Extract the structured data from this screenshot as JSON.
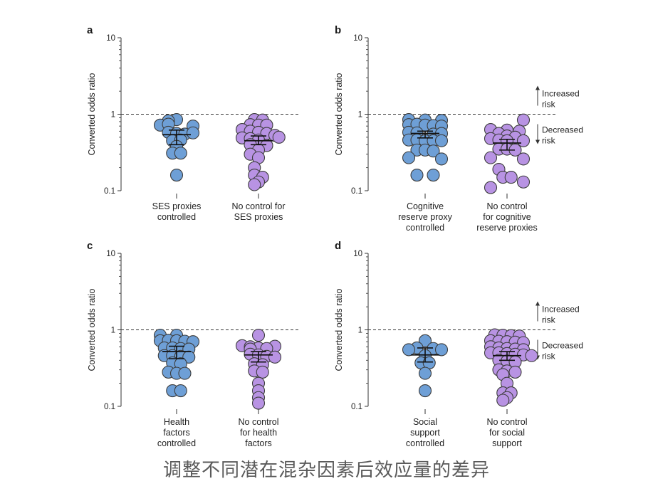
{
  "caption": "调整不同潜在混杂因素后效应量的差异",
  "colors": {
    "controlled": "#6e9fd6",
    "uncontrolled": "#b893e3",
    "stroke": "#3d3d3d"
  },
  "annotations": {
    "increased": [
      "Increased",
      "risk"
    ],
    "decreased": [
      "Decreased",
      "risk"
    ]
  },
  "chart_data": [
    {
      "panel": "a",
      "type": "scatter",
      "scale": "log",
      "ylabel": "Converted odds ratio",
      "ylim": [
        0.1,
        10
      ],
      "yticks": [
        "10",
        "1",
        "0.1"
      ],
      "reference_line": 1,
      "show_risk_labels": false,
      "groups": [
        {
          "label": [
            "SES proxies",
            "controlled"
          ],
          "kind": "controlled",
          "mean": 0.54,
          "ci": [
            0.4,
            0.62
          ],
          "values": [
            0.85,
            0.82,
            0.72,
            0.74,
            0.7,
            0.58,
            0.56,
            0.55,
            0.57,
            0.45,
            0.46,
            0.38,
            0.31,
            0.31,
            0.16
          ],
          "jitter": [
            0,
            -1,
            -2,
            -1,
            2,
            -1,
            0,
            1,
            2,
            -0.5,
            0.5,
            0,
            -0.5,
            0.5,
            0
          ]
        },
        {
          "label": [
            "No control for",
            "SES proxies"
          ],
          "kind": "uncontrolled",
          "mean": 0.45,
          "ci": [
            0.4,
            0.52
          ],
          "values": [
            0.85,
            0.84,
            0.73,
            0.72,
            0.72,
            0.63,
            0.6,
            0.58,
            0.56,
            0.53,
            0.5,
            0.49,
            0.48,
            0.46,
            0.4,
            0.39,
            0.34,
            0.3,
            0.27,
            0.2,
            0.16,
            0.15,
            0.13,
            0.12
          ],
          "jitter": [
            -0.5,
            0.5,
            -1,
            0,
            1,
            -2,
            -1,
            0,
            1,
            2,
            2.5,
            -2,
            -1,
            0,
            -1,
            1,
            0,
            -1,
            0,
            -0.5,
            -0.5,
            0.5,
            0,
            -0.5
          ]
        }
      ]
    },
    {
      "panel": "b",
      "type": "scatter",
      "scale": "log",
      "ylabel": "Converted odds ratio",
      "ylim": [
        0.1,
        10
      ],
      "yticks": [
        "10",
        "1",
        "0.1"
      ],
      "reference_line": 1,
      "show_risk_labels": true,
      "groups": [
        {
          "label": [
            "Cognitive",
            "reserve proxy",
            "controlled"
          ],
          "kind": "controlled",
          "mean": 0.56,
          "ci": [
            0.49,
            0.6
          ],
          "values": [
            0.85,
            0.84,
            0.83,
            0.73,
            0.74,
            0.72,
            0.71,
            0.7,
            0.58,
            0.57,
            0.55,
            0.56,
            0.46,
            0.46,
            0.45,
            0.45,
            0.45,
            0.34,
            0.34,
            0.33,
            0.27,
            0.26,
            0.16,
            0.16
          ],
          "jitter": [
            -2,
            0,
            2,
            -2,
            -1,
            0,
            1,
            2,
            -2,
            -1,
            1,
            2,
            -2,
            -1,
            0,
            1,
            2,
            -1,
            0,
            1,
            -2,
            2,
            -1,
            1
          ]
        },
        {
          "label": [
            "No control",
            "for cognitive",
            "reserve proxies"
          ],
          "kind": "uncontrolled",
          "mean": 0.42,
          "ci": [
            0.34,
            0.47
          ],
          "values": [
            0.84,
            0.63,
            0.62,
            0.6,
            0.56,
            0.52,
            0.5,
            0.48,
            0.46,
            0.45,
            0.45,
            0.35,
            0.35,
            0.34,
            0.27,
            0.26,
            0.19,
            0.15,
            0.15,
            0.13,
            0.11
          ],
          "jitter": [
            2,
            -2,
            0,
            1.5,
            -1,
            0,
            1,
            -2,
            -1,
            0,
            2,
            -1,
            0,
            1,
            -2,
            2,
            -1,
            -0.5,
            0.5,
            2,
            -2
          ]
        }
      ]
    },
    {
      "panel": "c",
      "type": "scatter",
      "scale": "log",
      "ylabel": "Converted odds ratio",
      "ylim": [
        0.1,
        10
      ],
      "yticks": [
        "10",
        "1",
        "0.1"
      ],
      "reference_line": 1,
      "show_risk_labels": false,
      "groups": [
        {
          "label": [
            "Health",
            "factors",
            "controlled"
          ],
          "kind": "controlled",
          "mean": 0.52,
          "ci": [
            0.42,
            0.61
          ],
          "values": [
            0.85,
            0.85,
            0.72,
            0.73,
            0.72,
            0.71,
            0.7,
            0.58,
            0.58,
            0.57,
            0.56,
            0.46,
            0.46,
            0.45,
            0.44,
            0.37,
            0.36,
            0.28,
            0.27,
            0.27,
            0.16,
            0.16
          ],
          "jitter": [
            -2,
            0,
            -2,
            -1,
            0,
            1,
            2,
            -1.5,
            -0.5,
            0.5,
            1.5,
            -1.5,
            -0.5,
            0.5,
            1.5,
            -0.5,
            0.5,
            -1,
            0,
            1,
            -0.5,
            0.5
          ]
        },
        {
          "label": [
            "No control",
            "for health",
            "factors"
          ],
          "kind": "uncontrolled",
          "mean": 0.47,
          "ci": [
            0.38,
            0.52
          ],
          "values": [
            0.85,
            0.62,
            0.6,
            0.61,
            0.58,
            0.57,
            0.56,
            0.48,
            0.47,
            0.45,
            0.44,
            0.36,
            0.35,
            0.29,
            0.28,
            0.2,
            0.16,
            0.13,
            0.11
          ],
          "jitter": [
            0,
            -2,
            -1,
            2,
            0,
            1,
            -1,
            -1,
            0,
            1,
            2,
            -0.5,
            0.5,
            -0.5,
            0.5,
            0,
            0,
            0,
            0
          ]
        }
      ]
    },
    {
      "panel": "d",
      "type": "scatter",
      "scale": "log",
      "ylabel": "Converted odds ratio",
      "ylim": [
        0.1,
        10
      ],
      "yticks": [
        "10",
        "1",
        "0.1"
      ],
      "reference_line": 1,
      "show_risk_labels": true,
      "groups": [
        {
          "label": [
            "Social",
            "support",
            "controlled"
          ],
          "kind": "controlled",
          "mean": 0.47,
          "ci": [
            0.38,
            0.58
          ],
          "values": [
            0.72,
            0.58,
            0.57,
            0.55,
            0.55,
            0.46,
            0.37,
            0.37,
            0.27,
            0.16
          ],
          "jitter": [
            0,
            -1,
            1,
            -2,
            2,
            0,
            -0.5,
            0.5,
            0,
            0
          ]
        },
        {
          "label": [
            "No control",
            "for social",
            "support"
          ],
          "kind": "uncontrolled",
          "mean": 0.46,
          "ci": [
            0.4,
            0.52
          ],
          "values": [
            0.86,
            0.85,
            0.84,
            0.83,
            0.72,
            0.71,
            0.7,
            0.69,
            0.68,
            0.6,
            0.58,
            0.57,
            0.56,
            0.55,
            0.5,
            0.5,
            0.49,
            0.48,
            0.47,
            0.46,
            0.4,
            0.39,
            0.38,
            0.3,
            0.29,
            0.28,
            0.26,
            0.2,
            0.15,
            0.15,
            0.13,
            0.12
          ],
          "jitter": [
            -1.5,
            -0.5,
            0.5,
            1.5,
            -2,
            -1,
            0,
            1,
            2,
            -2,
            -1,
            0,
            1,
            2,
            -2,
            -1,
            0,
            1,
            2,
            3,
            -1,
            0,
            1,
            -1,
            0,
            1,
            -0.5,
            0,
            -0.5,
            0.5,
            0,
            -0.5
          ]
        }
      ]
    }
  ]
}
